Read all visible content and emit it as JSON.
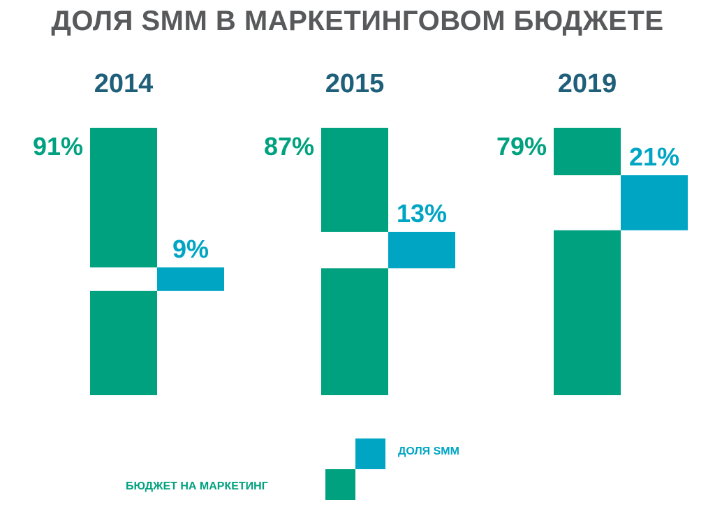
{
  "title": "ДОЛЯ SMM В МАРКЕТИНГОВОМ БЮДЖЕТЕ",
  "colors": {
    "title": "#58595b",
    "year": "#1f5f7a",
    "marketing": "#00a17f",
    "smm": "#00a5c4"
  },
  "chart_data": {
    "type": "bar",
    "title": "ДОЛЯ SMM В МАРКЕТИНГОВОМ БЮДЖЕТЕ",
    "categories": [
      "2014",
      "2015",
      "2019"
    ],
    "series": [
      {
        "name": "БЮДЖЕТ НА МАРКЕТИНГ",
        "values": [
          91,
          87,
          79
        ],
        "labels": [
          "91%",
          "87%",
          "79%"
        ]
      },
      {
        "name": "ДОЛЯ SMM",
        "values": [
          9,
          13,
          21
        ],
        "labels": [
          "9%",
          "13%",
          "21%"
        ]
      }
    ],
    "unit": "%",
    "ylim": [
      0,
      100
    ],
    "legend_position": "bottom-center"
  },
  "legend": {
    "smm_label": "ДОЛЯ SMM",
    "marketing_label": "БЮДЖЕТ НА МАРКЕТИНГ"
  }
}
